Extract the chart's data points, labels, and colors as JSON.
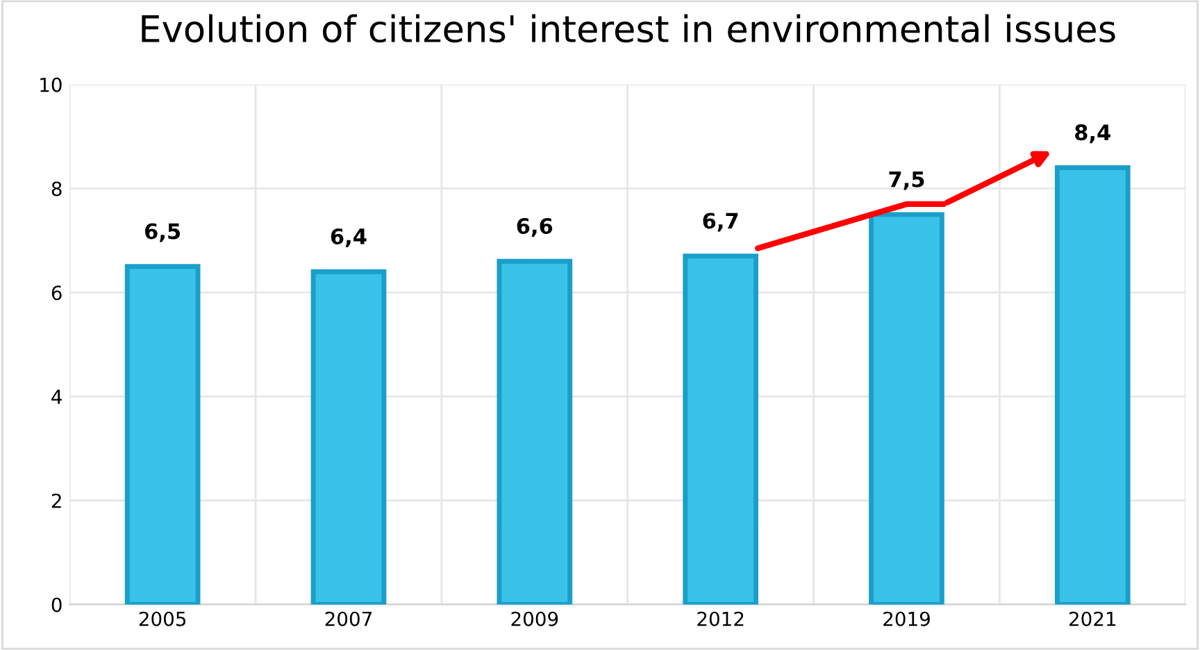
{
  "chart_data": {
    "type": "bar",
    "title": "Evolution of citizens' interest in environmental issues",
    "categories": [
      "2005",
      "2007",
      "2009",
      "2012",
      "2019",
      "2021"
    ],
    "values": [
      6.5,
      6.4,
      6.6,
      6.7,
      7.5,
      8.4
    ],
    "value_labels": [
      "6,5",
      "6,4",
      "6,6",
      "6,7",
      "7,5",
      "8,4"
    ],
    "color": "#38c2e8",
    "ylim": [
      0,
      10
    ],
    "yticks": [
      0,
      2,
      4,
      6,
      8,
      10
    ],
    "grid": true
  }
}
